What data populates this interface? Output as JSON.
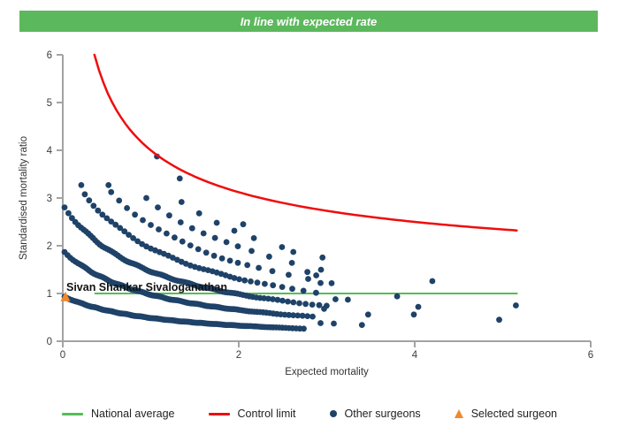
{
  "header": {
    "title": "In line with expected rate",
    "bg_color": "#5cb85c",
    "text_color": "#ffffff"
  },
  "chart_data": {
    "type": "scatter",
    "xlabel": "Expected mortality",
    "ylabel": "Standardised mortality ratio",
    "xlim": [
      0,
      6
    ],
    "ylim": [
      0,
      6
    ],
    "x_ticks": [
      0,
      2,
      4,
      6
    ],
    "y_ticks": [
      0,
      1,
      2,
      3,
      4,
      5,
      6
    ],
    "grid": false,
    "legend_position": "bottom",
    "colors": {
      "other_surgeons": "#1f4268",
      "selected_surgeon": "#f0882c",
      "national_average": "#54be54",
      "control_limit": "#f00c0c",
      "axis": "#a3a3a3",
      "tick_text": "#3c3c3c"
    },
    "national_average": {
      "y": 1.0,
      "x_start": 0.36,
      "x_end": 5.17
    },
    "control_limit": {
      "formula": "smr = 1 + 3 / sqrt(expected)",
      "x_start": 0.36,
      "x_end": 5.17,
      "y_clip": 6.0
    },
    "other_surgeons": {
      "band_model": "smr = n / (expected + 1.05), n = observed-death bands",
      "bands": [
        {
          "n": 1,
          "e_start": 0.02,
          "e_end": 2.75,
          "base_step": 0.016
        },
        {
          "n": 2,
          "e_start": 0.02,
          "e_end": 2.9,
          "base_step": 0.02
        },
        {
          "n": 3,
          "e_start": 0.02,
          "e_end": 3.0,
          "base_step": 0.026
        },
        {
          "n": 4,
          "e_start": 0.25,
          "e_end": 3.0,
          "base_step": 0.05
        },
        {
          "n": 5,
          "e_start": 0.55,
          "e_end": 3.1,
          "base_step": 0.09
        },
        {
          "n": 6,
          "e_start": 0.95,
          "e_end": 3.2,
          "base_step": 0.13
        },
        {
          "n": 7,
          "e_start": 1.35,
          "e_end": 3.3,
          "base_step": 0.2
        }
      ],
      "extra_points": [
        [
          0.21,
          3.27
        ],
        [
          0.52,
          3.27
        ],
        [
          1.07,
          3.87
        ],
        [
          1.33,
          3.41
        ],
        [
          2.05,
          2.45
        ],
        [
          2.62,
          1.87
        ],
        [
          2.78,
          1.45
        ],
        [
          2.88,
          1.38
        ],
        [
          2.93,
          1.22
        ],
        [
          3.1,
          0.88
        ],
        [
          3.24,
          0.87
        ],
        [
          2.97,
          0.68
        ],
        [
          2.93,
          0.38
        ],
        [
          3.08,
          0.37
        ],
        [
          3.4,
          0.34
        ],
        [
          3.47,
          0.56
        ],
        [
          3.8,
          0.94
        ],
        [
          3.99,
          0.56
        ],
        [
          4.04,
          0.72
        ],
        [
          4.2,
          1.26
        ],
        [
          4.96,
          0.45
        ],
        [
          5.15,
          0.75
        ]
      ]
    },
    "selected_surgeon": {
      "x": 0.03,
      "y": 0.93,
      "label": "Sivan Shankar Sivaloganathan"
    }
  },
  "legend": {
    "items": [
      {
        "label": "National average",
        "marker": "line",
        "color": "#54be54"
      },
      {
        "label": "Control limit",
        "marker": "line",
        "color": "#f00c0c"
      },
      {
        "label": "Other surgeons",
        "marker": "dot",
        "color": "#1f4268"
      },
      {
        "label": "Selected surgeon",
        "marker": "triangle",
        "color": "#f0882c"
      }
    ]
  }
}
